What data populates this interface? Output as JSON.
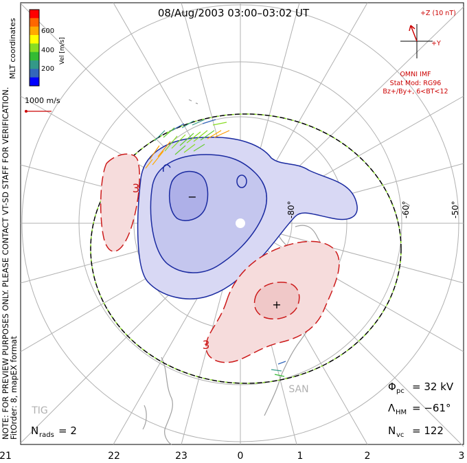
{
  "title": "08/Aug/2003 03:00–03:02 UT",
  "coord_system": "MLT coordinates",
  "color_scale": {
    "label": "Vel [m/s]",
    "ticks": [
      "600",
      "400",
      "200"
    ],
    "colors": [
      "#ff0000",
      "#ff6600",
      "#ffaa00",
      "#ffff00",
      "#88dd22",
      "#33bb33",
      "#339988",
      "#3366bb",
      "#0000ff"
    ]
  },
  "reference_vector": {
    "label": "1000 m/s"
  },
  "warning_text": "NOTE: FOR PREVIEW PURPOSES ONLY. PLEASE CONTACT VT-SD STAFF FOR VERIFICATION.",
  "fit_text": "FitOrder: 8, mapEX format",
  "imf": {
    "magnitude_label": "+Z (10 nT)",
    "y_label": "+Y",
    "source": "OMNI IMF",
    "model": "Stat Mod: RG96",
    "condition": "Bz+/By+, 6<BT<12"
  },
  "lat_labels": [
    "-80°",
    "-60°",
    "-50°"
  ],
  "mlt_ticks": [
    "21",
    "22",
    "23",
    "0",
    "1",
    "2",
    "3"
  ],
  "contour_labels": {
    "negative": "−",
    "positive": "+",
    "three_left": "3",
    "three_lower": "3"
  },
  "stations": [
    "SAN",
    "TIG"
  ],
  "stats": {
    "phi_pc_label": "Φ",
    "phi_pc_sub": "pc",
    "phi_pc_value": "= 32 kV",
    "lambda_label": "Λ",
    "lambda_sub": "HM",
    "lambda_value": "= −61°",
    "nvc_label": "N",
    "nvc_sub": "vc",
    "nvc_value": "= 122",
    "nrads_label": "N",
    "nrads_sub": "rads",
    "nrads_value": "= 2"
  },
  "colors": {
    "negative_fill": "#d8d8f4",
    "negative_core": "#aeb0e8",
    "negative_line": "#1a2aa0",
    "positive_fill": "#f6dcdc",
    "positive_core": "#f0c8c8",
    "positive_line": "#cc1a1a",
    "grid": "#b0b0b0",
    "coast": "#a0a0a0",
    "imf_red": "#cc0000"
  }
}
